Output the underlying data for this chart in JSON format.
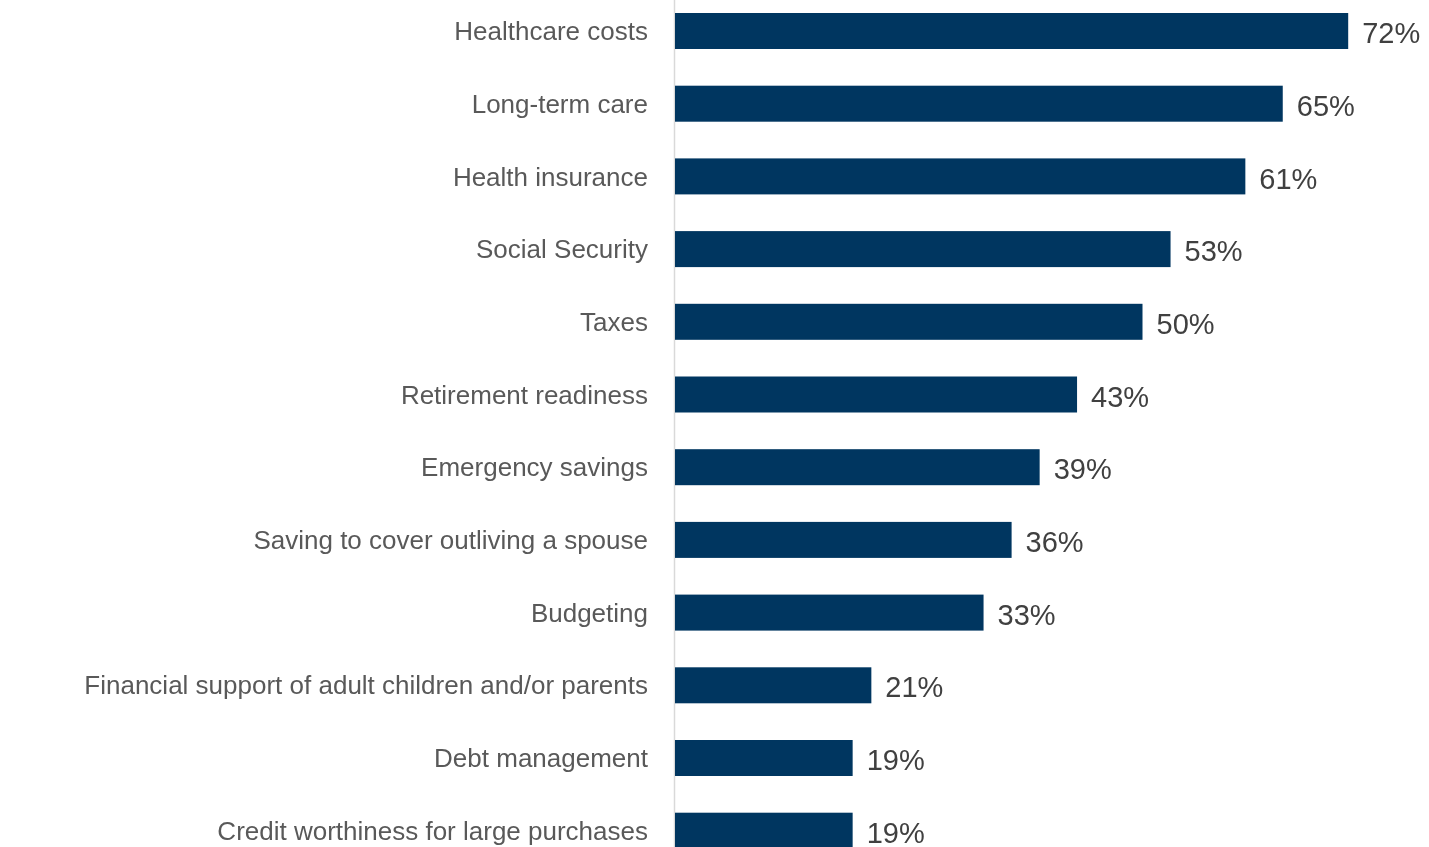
{
  "chart_data": {
    "type": "bar",
    "orientation": "horizontal",
    "categories": [
      "Healthcare costs",
      "Long-term care",
      "Health insurance",
      "Social Security",
      "Taxes",
      "Retirement readiness",
      "Emergency savings",
      "Saving to cover outliving a spouse",
      "Budgeting",
      "Financial support of adult children and/or parents",
      "Debt management",
      "Credit worthiness for large purchases"
    ],
    "values": [
      72,
      65,
      61,
      53,
      50,
      43,
      39,
      36,
      33,
      21,
      19,
      19
    ],
    "value_labels": [
      "72%",
      "65%",
      "61%",
      "53%",
      "50%",
      "43%",
      "39%",
      "36%",
      "33%",
      "21%",
      "19%",
      "19%"
    ],
    "color": "#003660"
  }
}
